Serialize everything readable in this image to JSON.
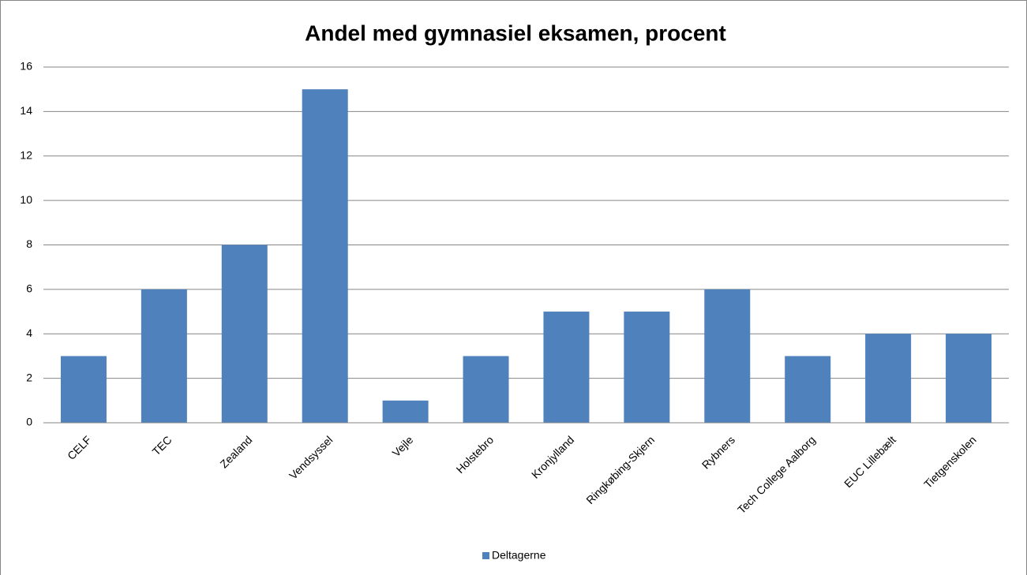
{
  "chart_data": {
    "type": "bar",
    "title": "Andel med gymnasiel eksamen, procent",
    "categories": [
      "CELF",
      "TEC",
      "Zealand",
      "Vendsyssel",
      "Vejle",
      "Holstebro",
      "Kronjylland",
      "Ringkøbing-Skjern",
      "Rybners",
      "Tech College Aalborg",
      "EUC Lillebælt",
      "Tietgenskolen"
    ],
    "series": [
      {
        "name": "Deltagerne",
        "color": "#4f81bd",
        "values": [
          3,
          6,
          8,
          15,
          1,
          3,
          5,
          5,
          6,
          3,
          4,
          4
        ]
      }
    ],
    "ylim": [
      0,
      16
    ],
    "yticks": [
      0,
      2,
      4,
      6,
      8,
      10,
      12,
      14,
      16
    ],
    "grid": true,
    "legend": "bottom"
  }
}
